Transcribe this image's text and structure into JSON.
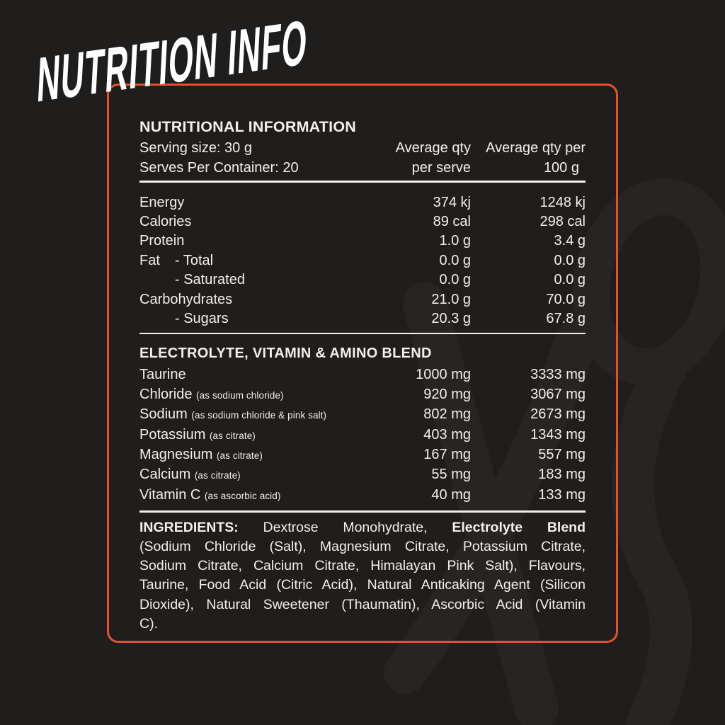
{
  "page": {
    "background_color": "#201d1d",
    "watermark_color": "#282424",
    "accent_color": "#e5512b",
    "text_color": "#f2efec"
  },
  "title": "NUTRITION INFO",
  "panel": {
    "heading": "NUTRITIONAL INFORMATION",
    "serving_size_label": "Serving size: 30 g",
    "serves_label": "Serves Per Container: 20",
    "col1_header": [
      "Average qty",
      "per serve"
    ],
    "col2_header": [
      "Average qty per",
      "100 g"
    ],
    "nutrition_rows": [
      {
        "label": "Energy",
        "per_serve": "374 kj",
        "per_100g": "1248 kj"
      },
      {
        "label": "Calories",
        "per_serve": "89 cal",
        "per_100g": "298 cal"
      },
      {
        "label": "Protein",
        "per_serve": "1.0 g",
        "per_100g": "3.4 g"
      },
      {
        "label": "Fat",
        "sub": "- Total",
        "per_serve": "0.0 g",
        "per_100g": "0.0 g"
      },
      {
        "label": "",
        "sub": "- Saturated",
        "per_serve": "0.0 g",
        "per_100g": "0.0 g"
      },
      {
        "label": "Carbohydrates",
        "per_serve": "21.0 g",
        "per_100g": "70.0 g"
      },
      {
        "label": "",
        "sub": "- Sugars",
        "per_serve": "20.3 g",
        "per_100g": "67.8 g"
      }
    ],
    "blend_heading": "ELECTROLYTE, VITAMIN & AMINO BLEND",
    "blend_rows": [
      {
        "label": "Taurine",
        "note": "",
        "per_serve": "1000 mg",
        "per_100g": "3333 mg"
      },
      {
        "label": "Chloride",
        "note": "(as sodium chloride)",
        "per_serve": "920 mg",
        "per_100g": "3067 mg"
      },
      {
        "label": "Sodium",
        "note": "(as sodium chloride & pink salt)",
        "per_serve": "802 mg",
        "per_100g": "2673 mg"
      },
      {
        "label": "Potassium",
        "note": "(as citrate)",
        "per_serve": "403 mg",
        "per_100g": "1343 mg"
      },
      {
        "label": "Magnesium",
        "note": "(as citrate)",
        "per_serve": "167 mg",
        "per_100g": "557 mg"
      },
      {
        "label": "Calcium",
        "note": "(as citrate)",
        "per_serve": "55 mg",
        "per_100g": "183 mg"
      },
      {
        "label": "Vitamin C",
        "note": "(as ascorbic acid)",
        "per_serve": "40 mg",
        "per_100g": "133 mg"
      }
    ],
    "ingredients_lines": [
      [
        {
          "t": "INGREDIENTS:",
          "b": true
        },
        {
          "t": "Dextrose",
          "b": false
        },
        {
          "t": "Monohydrate,",
          "b": false
        },
        {
          "t": "Electrolyte",
          "b": true
        },
        {
          "t": "Blend",
          "b": true
        }
      ],
      [
        {
          "t": "(Sodium Chloride (Salt), Magnesium Citrate, Potassium Citrate,",
          "b": false
        }
      ],
      [
        {
          "t": "Sodium Citrate, Calcium Citrate, Himalayan Pink Salt), Flavours,",
          "b": false
        }
      ],
      [
        {
          "t": "Taurine, Food Acid (Citric Acid), Natural Anticaking Agent (Silicon",
          "b": false
        }
      ],
      [
        {
          "t": "Dioxide), Natural Sweetener (Thaumatin), Ascorbic Acid (Vitamin",
          "b": false
        }
      ],
      [
        {
          "t": "C).",
          "b": false
        }
      ]
    ]
  }
}
